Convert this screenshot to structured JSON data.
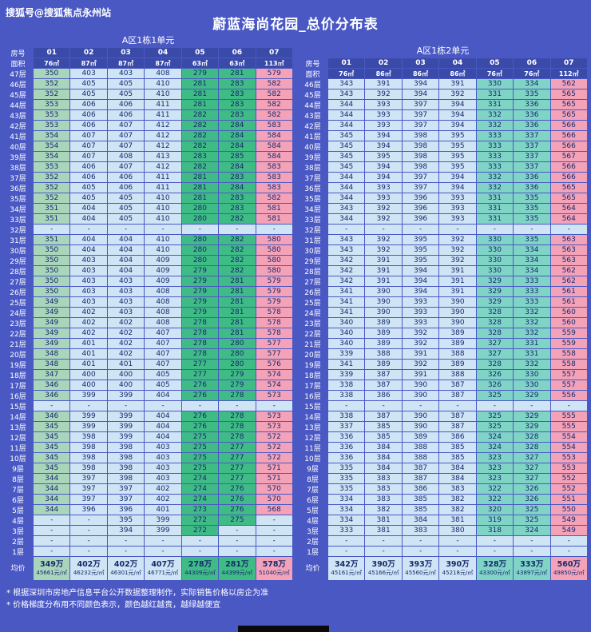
{
  "page": {
    "watermark": "搜狐号@搜狐焦点永州站",
    "title": "蔚蓝海尚花园_总价分布表"
  },
  "notes": [
    "* 根据深圳市房地产信息平台公开数据整理制作，实际销售价格以房企为准",
    "* 价格梯度分布用不同颜色表示，颜色越红越贵，越绿越便宜"
  ],
  "colors": {
    "background": "#4a58c4",
    "header_blue": "#3a4aa8",
    "cell_blue": "#cfe5f5",
    "cell_green_light": "#a9d6ba",
    "cell_green": "#3fbc86",
    "cell_teal": "#7fd4c6",
    "cell_pink": "#f4a2b8",
    "cell_text": "#16296b"
  },
  "chart_data": [
    {
      "type": "table",
      "unit_title": "A区1栋1单元",
      "row_header": "房号",
      "area_header": "面积",
      "avg_label": "均价",
      "columns": [
        "01",
        "02",
        "03",
        "04",
        "05",
        "06",
        "07"
      ],
      "areas": [
        "76㎡",
        "87㎡",
        "87㎡",
        "87㎡",
        "63㎡",
        "63㎡",
        "113㎡"
      ],
      "col_styles": [
        "green_light",
        "blue",
        "blue",
        "blue",
        "green",
        "green",
        "pink"
      ],
      "floors": [
        "47层",
        "46层",
        "45层",
        "44层",
        "43层",
        "42层",
        "41层",
        "40层",
        "39层",
        "38层",
        "37层",
        "36层",
        "35层",
        "34层",
        "33层",
        "32层",
        "31层",
        "30层",
        "29层",
        "28层",
        "27层",
        "26层",
        "25层",
        "24层",
        "23层",
        "22层",
        "21层",
        "20层",
        "19层",
        "18层",
        "17层",
        "16层",
        "15层",
        "14层",
        "13层",
        "12层",
        "11层",
        "10层",
        "9层",
        "8层",
        "7层",
        "6层",
        "5层",
        "4层",
        "3层",
        "2层",
        "1层"
      ],
      "rows": [
        [
          "350",
          "403",
          "403",
          "408",
          "279",
          "281",
          "579"
        ],
        [
          "352",
          "405",
          "405",
          "410",
          "281",
          "283",
          "582"
        ],
        [
          "352",
          "405",
          "405",
          "410",
          "281",
          "283",
          "582"
        ],
        [
          "353",
          "406",
          "406",
          "411",
          "281",
          "283",
          "582"
        ],
        [
          "353",
          "406",
          "406",
          "411",
          "282",
          "283",
          "582"
        ],
        [
          "353",
          "406",
          "407",
          "412",
          "282",
          "284",
          "583"
        ],
        [
          "354",
          "407",
          "407",
          "412",
          "282",
          "284",
          "584"
        ],
        [
          "354",
          "407",
          "407",
          "412",
          "282",
          "284",
          "584"
        ],
        [
          "354",
          "407",
          "408",
          "413",
          "283",
          "285",
          "584"
        ],
        [
          "353",
          "406",
          "407",
          "412",
          "282",
          "284",
          "583"
        ],
        [
          "352",
          "406",
          "406",
          "411",
          "281",
          "283",
          "583"
        ],
        [
          "352",
          "405",
          "406",
          "411",
          "281",
          "284",
          "583"
        ],
        [
          "352",
          "405",
          "405",
          "410",
          "281",
          "283",
          "582"
        ],
        [
          "351",
          "404",
          "405",
          "410",
          "280",
          "283",
          "581"
        ],
        [
          "351",
          "404",
          "405",
          "410",
          "280",
          "282",
          "581"
        ],
        [
          "-",
          "-",
          "-",
          "-",
          "-",
          "-",
          "-"
        ],
        [
          "351",
          "404",
          "404",
          "410",
          "280",
          "282",
          "580"
        ],
        [
          "350",
          "404",
          "404",
          "410",
          "280",
          "282",
          "580"
        ],
        [
          "350",
          "403",
          "404",
          "409",
          "280",
          "282",
          "580"
        ],
        [
          "350",
          "403",
          "404",
          "409",
          "279",
          "282",
          "580"
        ],
        [
          "350",
          "403",
          "403",
          "409",
          "279",
          "281",
          "579"
        ],
        [
          "350",
          "403",
          "403",
          "408",
          "279",
          "281",
          "579"
        ],
        [
          "349",
          "403",
          "403",
          "408",
          "279",
          "281",
          "579"
        ],
        [
          "349",
          "402",
          "403",
          "408",
          "279",
          "281",
          "578"
        ],
        [
          "349",
          "402",
          "402",
          "408",
          "278",
          "281",
          "578"
        ],
        [
          "349",
          "402",
          "402",
          "407",
          "278",
          "281",
          "578"
        ],
        [
          "349",
          "401",
          "402",
          "407",
          "278",
          "280",
          "577"
        ],
        [
          "348",
          "401",
          "402",
          "407",
          "278",
          "280",
          "577"
        ],
        [
          "348",
          "401",
          "401",
          "407",
          "277",
          "280",
          "576"
        ],
        [
          "347",
          "400",
          "400",
          "405",
          "277",
          "279",
          "574"
        ],
        [
          "346",
          "400",
          "400",
          "405",
          "276",
          "279",
          "574"
        ],
        [
          "346",
          "399",
          "399",
          "404",
          "276",
          "278",
          "573"
        ],
        [
          "-",
          "-",
          "-",
          "-",
          "-",
          "-",
          "-"
        ],
        [
          "346",
          "399",
          "399",
          "404",
          "276",
          "278",
          "573"
        ],
        [
          "345",
          "399",
          "399",
          "404",
          "276",
          "278",
          "573"
        ],
        [
          "345",
          "398",
          "399",
          "404",
          "275",
          "278",
          "572"
        ],
        [
          "345",
          "398",
          "398",
          "403",
          "275",
          "277",
          "572"
        ],
        [
          "345",
          "398",
          "398",
          "403",
          "275",
          "277",
          "572"
        ],
        [
          "345",
          "398",
          "398",
          "403",
          "275",
          "277",
          "571"
        ],
        [
          "344",
          "397",
          "398",
          "403",
          "274",
          "277",
          "571"
        ],
        [
          "344",
          "397",
          "397",
          "402",
          "274",
          "276",
          "570"
        ],
        [
          "344",
          "397",
          "397",
          "402",
          "274",
          "276",
          "570"
        ],
        [
          "344",
          "396",
          "396",
          "401",
          "273",
          "276",
          "568"
        ],
        [
          "-",
          "-",
          "395",
          "399",
          "272",
          "275",
          "-"
        ],
        [
          "-",
          "-",
          "394",
          "399",
          "272",
          "-",
          "-"
        ],
        [
          "-",
          "-",
          "-",
          "-",
          "-",
          "-",
          "-"
        ],
        [
          "-",
          "-",
          "-",
          "-",
          "-",
          "-",
          "-"
        ]
      ],
      "avg_prices": [
        "349万",
        "402万",
        "402万",
        "407万",
        "278万",
        "281万",
        "578万"
      ],
      "avg_unit_prices": [
        "45661元/㎡",
        "46232元/㎡",
        "46301元/㎡",
        "46771元/㎡",
        "44309元/㎡",
        "44399元/㎡",
        "51040元/㎡"
      ]
    },
    {
      "type": "table",
      "unit_title": "A区1栋2单元",
      "row_header": "房号",
      "area_header": "面积",
      "avg_label": "均价",
      "columns": [
        "01",
        "02",
        "03",
        "04",
        "05",
        "06",
        "07"
      ],
      "areas": [
        "76㎡",
        "86㎡",
        "86㎡",
        "86㎡",
        "76㎡",
        "76㎡",
        "112㎡"
      ],
      "col_styles": [
        "blue",
        "blue",
        "blue",
        "blue",
        "teal",
        "teal",
        "pink"
      ],
      "floors": [
        "46层",
        "45层",
        "44层",
        "43层",
        "42层",
        "41层",
        "40层",
        "39层",
        "38层",
        "37层",
        "36层",
        "35层",
        "34层",
        "33层",
        "32层",
        "31层",
        "30层",
        "29层",
        "28层",
        "27层",
        "26层",
        "25层",
        "24层",
        "23层",
        "22层",
        "21层",
        "20层",
        "19层",
        "18层",
        "17层",
        "16层",
        "15层",
        "14层",
        "13层",
        "12层",
        "11层",
        "10层",
        "9层",
        "8层",
        "7层",
        "6层",
        "5层",
        "4层",
        "3层",
        "2层",
        "1层"
      ],
      "rows": [
        [
          "343",
          "391",
          "394",
          "391",
          "330",
          "334",
          "562"
        ],
        [
          "343",
          "392",
          "394",
          "392",
          "331",
          "335",
          "565"
        ],
        [
          "344",
          "393",
          "397",
          "394",
          "331",
          "336",
          "565"
        ],
        [
          "344",
          "393",
          "397",
          "394",
          "332",
          "336",
          "565"
        ],
        [
          "344",
          "393",
          "397",
          "394",
          "332",
          "336",
          "566"
        ],
        [
          "345",
          "394",
          "398",
          "395",
          "333",
          "337",
          "566"
        ],
        [
          "345",
          "394",
          "398",
          "395",
          "333",
          "337",
          "566"
        ],
        [
          "345",
          "395",
          "398",
          "395",
          "333",
          "337",
          "567"
        ],
        [
          "345",
          "394",
          "398",
          "395",
          "333",
          "337",
          "566"
        ],
        [
          "344",
          "394",
          "397",
          "394",
          "332",
          "336",
          "566"
        ],
        [
          "344",
          "393",
          "397",
          "394",
          "332",
          "336",
          "565"
        ],
        [
          "344",
          "393",
          "396",
          "393",
          "331",
          "335",
          "565"
        ],
        [
          "343",
          "392",
          "396",
          "393",
          "331",
          "335",
          "564"
        ],
        [
          "344",
          "392",
          "396",
          "393",
          "331",
          "335",
          "564"
        ],
        [
          "-",
          "-",
          "-",
          "-",
          "-",
          "-",
          "-"
        ],
        [
          "343",
          "392",
          "395",
          "392",
          "330",
          "335",
          "563"
        ],
        [
          "343",
          "392",
          "395",
          "392",
          "330",
          "334",
          "563"
        ],
        [
          "342",
          "391",
          "395",
          "392",
          "330",
          "334",
          "563"
        ],
        [
          "342",
          "391",
          "394",
          "391",
          "330",
          "334",
          "562"
        ],
        [
          "342",
          "391",
          "394",
          "391",
          "329",
          "333",
          "562"
        ],
        [
          "341",
          "390",
          "394",
          "391",
          "329",
          "333",
          "561"
        ],
        [
          "341",
          "390",
          "393",
          "390",
          "329",
          "333",
          "561"
        ],
        [
          "341",
          "390",
          "393",
          "390",
          "328",
          "332",
          "560"
        ],
        [
          "340",
          "389",
          "393",
          "390",
          "328",
          "332",
          "560"
        ],
        [
          "340",
          "389",
          "392",
          "389",
          "328",
          "332",
          "559"
        ],
        [
          "340",
          "389",
          "392",
          "389",
          "327",
          "331",
          "559"
        ],
        [
          "339",
          "388",
          "391",
          "388",
          "327",
          "331",
          "558"
        ],
        [
          "341",
          "389",
          "392",
          "389",
          "328",
          "332",
          "558"
        ],
        [
          "339",
          "387",
          "391",
          "388",
          "326",
          "330",
          "557"
        ],
        [
          "338",
          "387",
          "390",
          "387",
          "326",
          "330",
          "557"
        ],
        [
          "338",
          "386",
          "390",
          "387",
          "325",
          "329",
          "556"
        ],
        [
          "-",
          "-",
          "-",
          "-",
          "-",
          "-",
          "-"
        ],
        [
          "338",
          "387",
          "390",
          "387",
          "325",
          "329",
          "555"
        ],
        [
          "337",
          "385",
          "390",
          "387",
          "325",
          "329",
          "555"
        ],
        [
          "336",
          "385",
          "389",
          "386",
          "324",
          "328",
          "554"
        ],
        [
          "336",
          "384",
          "388",
          "385",
          "324",
          "328",
          "554"
        ],
        [
          "336",
          "384",
          "388",
          "385",
          "323",
          "327",
          "553"
        ],
        [
          "335",
          "384",
          "387",
          "384",
          "323",
          "327",
          "553"
        ],
        [
          "335",
          "383",
          "387",
          "384",
          "323",
          "327",
          "552"
        ],
        [
          "335",
          "383",
          "386",
          "383",
          "322",
          "326",
          "552"
        ],
        [
          "334",
          "383",
          "385",
          "382",
          "322",
          "326",
          "551"
        ],
        [
          "334",
          "382",
          "385",
          "382",
          "320",
          "325",
          "550"
        ],
        [
          "334",
          "381",
          "384",
          "381",
          "319",
          "325",
          "549"
        ],
        [
          "333",
          "381",
          "383",
          "380",
          "318",
          "324",
          "549"
        ],
        [
          "-",
          "-",
          "-",
          "-",
          "-",
          "-",
          "-"
        ],
        [
          "-",
          "-",
          "-",
          "-",
          "-",
          "-",
          "-"
        ]
      ],
      "avg_prices": [
        "342万",
        "390万",
        "393万",
        "390万",
        "328万",
        "333万",
        "560万"
      ],
      "avg_unit_prices": [
        "45161元/㎡",
        "45166元/㎡",
        "45560元/㎡",
        "45218元/㎡",
        "43300元/㎡",
        "43897元/㎡",
        "49850元/㎡"
      ]
    }
  ]
}
